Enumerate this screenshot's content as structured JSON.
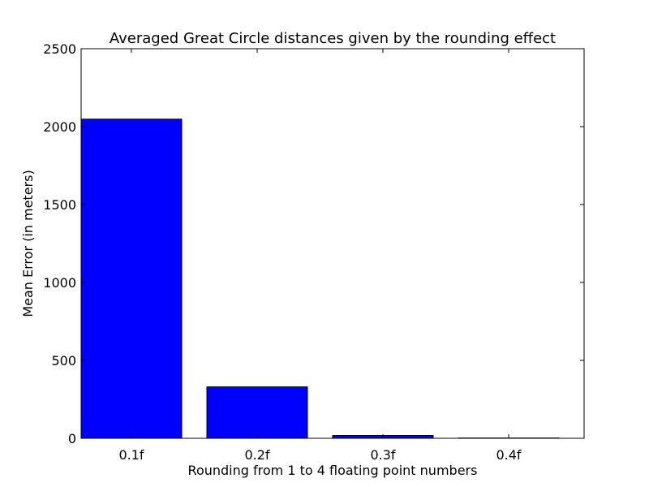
{
  "chart_data": {
    "type": "bar",
    "title": "Averaged Great Circle distances given by the rounding effect",
    "xlabel": "Rounding from 1 to 4 floating point numbers",
    "ylabel": "Mean Error (in meters)",
    "categories": [
      "0.1f",
      "0.2f",
      "0.3f",
      "0.4f"
    ],
    "values": [
      2048,
      330,
      18,
      2
    ],
    "ylim": [
      0,
      2500
    ],
    "yticks": [
      0,
      500,
      1000,
      1500,
      2000,
      2500
    ],
    "bar_color": "#0000ff",
    "grid": false
  }
}
